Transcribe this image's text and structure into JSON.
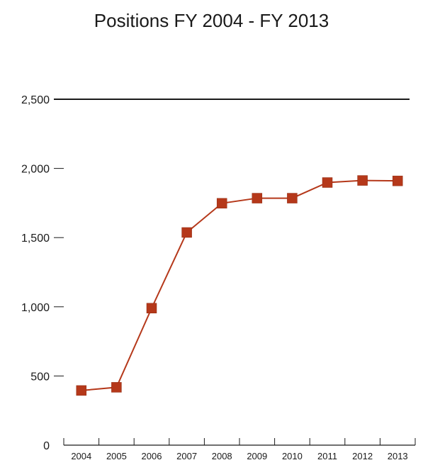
{
  "chart_data": {
    "type": "line",
    "title": "Positions FY 2004 - FY 2013",
    "xlabel": "",
    "ylabel": "",
    "categories": [
      "2004",
      "2005",
      "2006",
      "2007",
      "2008",
      "2009",
      "2010",
      "2011",
      "2012",
      "2013"
    ],
    "series": [
      {
        "values": [
          395,
          418,
          990,
          1537,
          1748,
          1785,
          1785,
          1898,
          1913,
          1910
        ],
        "color": "#b5381a"
      }
    ],
    "ylim": [
      0,
      2500
    ],
    "yticks": [
      0,
      500,
      1000,
      1500,
      2000,
      2500
    ],
    "ytick_labels": [
      "0",
      "500",
      "1,000",
      "1,500",
      "2,000",
      "2,500"
    ],
    "marker": "square",
    "grid": false,
    "top_rule_at": 2500
  }
}
